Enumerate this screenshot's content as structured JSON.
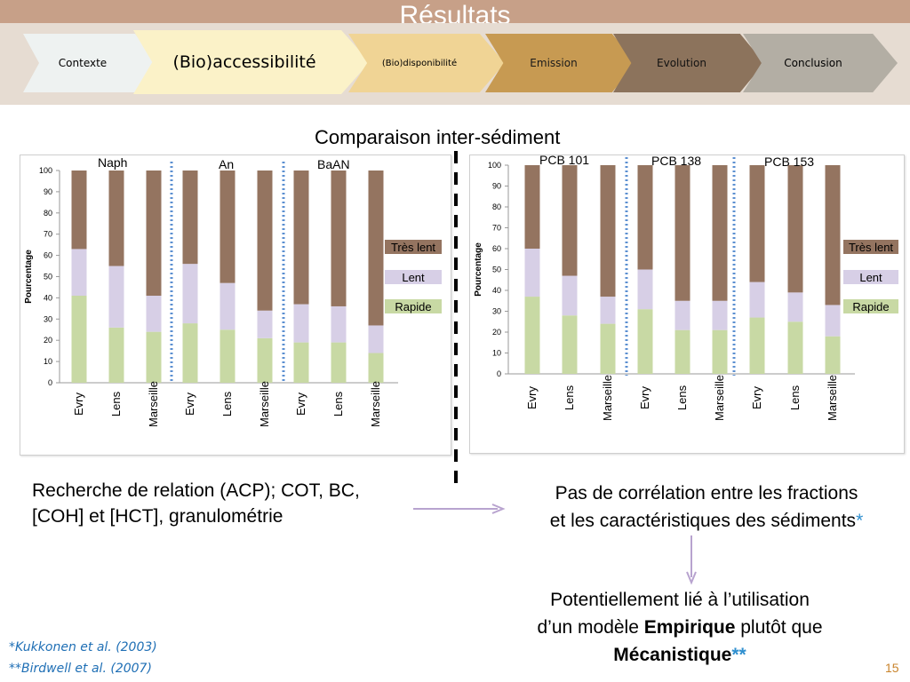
{
  "header": {
    "title": "Résultats"
  },
  "nav": {
    "tabs": [
      {
        "label": "Contexte"
      },
      {
        "label": "(Bio)accessibilité"
      },
      {
        "label": "(Bio)disponibilité"
      },
      {
        "label": "Emission"
      },
      {
        "label": "Evolution"
      },
      {
        "label": "Conclusion"
      }
    ],
    "colors": [
      "#eef2f1",
      "#fbf2c8",
      "#f0d495",
      "#c79a52",
      "#8c735c",
      "#b3aea4"
    ]
  },
  "main": {
    "heading": "Comparaison inter-sédiment",
    "left_text": "Recherche de relation (ACP); COT, BC, [COH] et [HCT], granulométrie",
    "right_text_1": "Pas de corrélation entre les fractions",
    "right_text_2": "et les caractéristiques des sédiments",
    "right_star": "*",
    "conclusion_1": "Potentiellement lié à l’utilisation",
    "conclusion_2a": "d’un modèle ",
    "conclusion_2b": "Empirique",
    "conclusion_2c": " plutôt que",
    "conclusion_3": "Mécanistique",
    "conclusion_star": "**"
  },
  "footer": {
    "ref1": "*Kukkonen et al. (2003)",
    "ref2": "**Birdwell et al. (2007)",
    "page": "15"
  },
  "colors": {
    "rapide": "#c8d9a4",
    "lent": "#d7cfe6",
    "tres_lent": "#947460",
    "arrow": "#b8a3cf",
    "title_bar": "#c7a088",
    "divider": "#5b8fd1"
  },
  "chart_data": [
    {
      "type": "bar",
      "stacked": true,
      "ylabel": "Pourcentage",
      "ylim": [
        0,
        100
      ],
      "yticks": [
        0,
        10,
        20,
        30,
        40,
        50,
        60,
        70,
        80,
        90,
        100
      ],
      "groups": [
        "Naph",
        "An",
        "BaAN"
      ],
      "categories": [
        "Evry",
        "Lens",
        "Marseille",
        "Evry",
        "Lens",
        "Marseille",
        "Evry",
        "Lens",
        "Marseille"
      ],
      "series": [
        {
          "name": "Rapide",
          "values": [
            41,
            26,
            24,
            28,
            25,
            21,
            19,
            19,
            14
          ]
        },
        {
          "name": "Lent",
          "values": [
            22,
            29,
            17,
            28,
            22,
            13,
            18,
            17,
            13
          ]
        },
        {
          "name": "Très lent",
          "values": [
            37,
            45,
            59,
            44,
            53,
            66,
            63,
            64,
            73
          ]
        }
      ],
      "legend_position": "right"
    },
    {
      "type": "bar",
      "stacked": true,
      "ylabel": "Pourcentage",
      "ylim": [
        0,
        100
      ],
      "yticks": [
        0,
        10,
        20,
        30,
        40,
        50,
        60,
        70,
        80,
        90,
        100
      ],
      "groups": [
        "PCB 101",
        "PCB 138",
        "PCB 153"
      ],
      "categories": [
        "Evry",
        "Lens",
        "Marseille",
        "Evry",
        "Lens",
        "Marseille",
        "Evry",
        "Lens",
        "Marseille"
      ],
      "series": [
        {
          "name": "Rapide",
          "values": [
            37,
            28,
            24,
            31,
            21,
            21,
            27,
            25,
            18
          ]
        },
        {
          "name": "Lent",
          "values": [
            23,
            19,
            13,
            19,
            14,
            14,
            17,
            14,
            15
          ]
        },
        {
          "name": "Très lent",
          "values": [
            40,
            53,
            63,
            50,
            65,
            65,
            56,
            61,
            67
          ]
        }
      ],
      "legend_position": "right"
    }
  ]
}
